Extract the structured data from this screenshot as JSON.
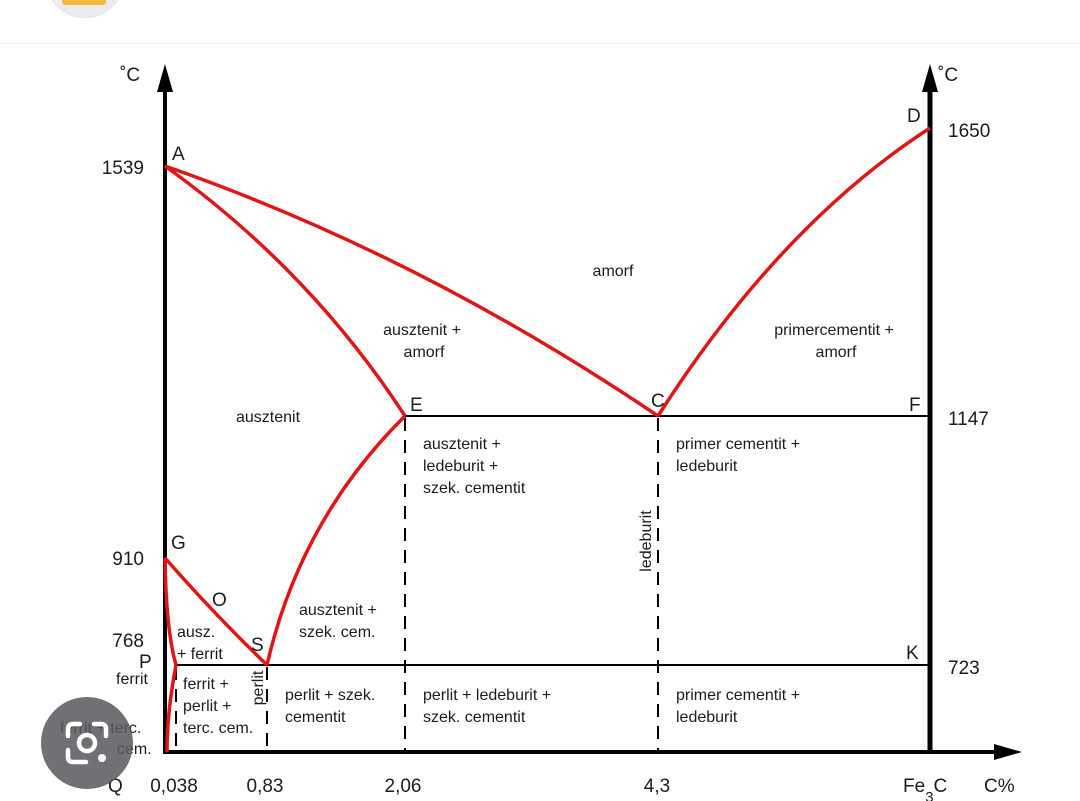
{
  "colors": {
    "phase_line": "#e01515",
    "axis": "#000000",
    "text": "#1c1c1c",
    "lens_button": "#5a5a5e"
  },
  "icons": {
    "lens": "google-lens-icon"
  },
  "axis_units": {
    "left": "˚C",
    "right": "˚C",
    "x": "C%"
  },
  "x_ticks": [
    "0,038",
    "0,83",
    "2,06",
    "4,3"
  ],
  "x_end_label": {
    "main": "Fe",
    "sub": "3",
    "tail": "C"
  },
  "x_origin_label": "Q",
  "temperatures": {
    "t1539": "1539",
    "t910": "910",
    "t768": "768",
    "t1650": "1650",
    "t1147": "1147",
    "t723": "723"
  },
  "points": {
    "A": "A",
    "D": "D",
    "E": "E",
    "C": "C",
    "F": "F",
    "G": "G",
    "O": "O",
    "S": "S",
    "P": "P",
    "K": "K"
  },
  "regions": {
    "amorf": "amorf",
    "ausztenit_amorf": [
      "ausztenit +",
      "amorf"
    ],
    "primercementit_amorf": [
      "primercementit +",
      "amorf"
    ],
    "ausztenit": "ausztenit",
    "ausztenit_ledeburit_szek": [
      "ausztenit +",
      "ledeburit +",
      "szek. cementit"
    ],
    "primer_cementit_ledeburit_top": [
      "primer cementit +",
      "ledeburit"
    ],
    "ledeburit_vertical": "ledeburit",
    "ausztenit_szek_cem": [
      "ausztenit +",
      "szek. cem."
    ],
    "ausz_ferrit": [
      "ausz.",
      "+ ferrit"
    ],
    "ferrit": "ferrit",
    "ferrit_perlit_terc": [
      "ferrit +",
      "perlit +",
      "terc. cem."
    ],
    "perlit_vertical": "perlit",
    "perlit_szek_cementit": [
      "perlit + szek.",
      "cementit"
    ],
    "perlit_ledeburit_szek": [
      "perlit + ledeburit +",
      "szek. cementit"
    ],
    "primer_cementit_ledeburit_bottom": [
      "primer cementit +",
      "ledeburit"
    ],
    "ferrit_terc_cem": [
      "ferrit + terc.",
      "cem."
    ]
  }
}
